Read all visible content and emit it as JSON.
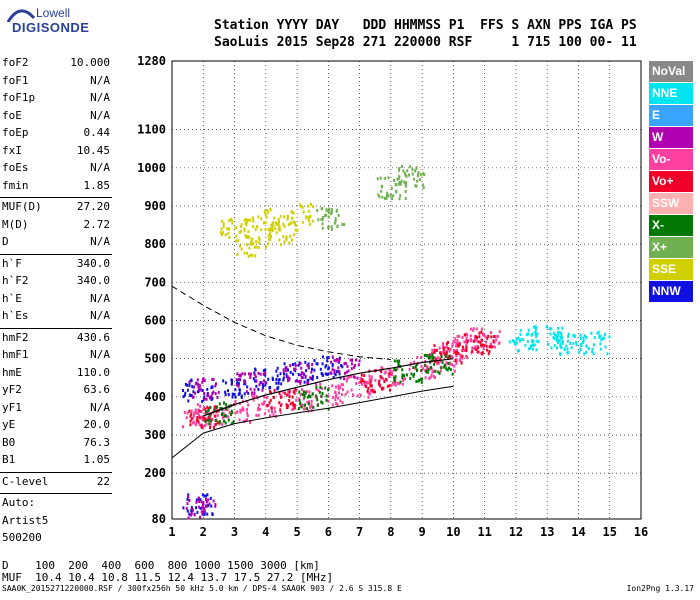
{
  "logo": {
    "top": "Lowell",
    "bottom": "DIGISONDE"
  },
  "header": {
    "line1": "Station YYYY DAY   DDD HHMMSS P1  FFS S AXN PPS IGA PS",
    "line2": "SaoLuis 2015 Sep28 271 220000 RSF     1 715 100 00- 11"
  },
  "params_group1": [
    {
      "name": "foF2",
      "value": "10.000"
    },
    {
      "name": "foF1",
      "value": "N/A"
    },
    {
      "name": "foF1p",
      "value": "N/A"
    },
    {
      "name": "foE",
      "value": "N/A"
    },
    {
      "name": "foEp",
      "value": "0.44"
    },
    {
      "name": "fxI",
      "value": "10.45"
    },
    {
      "name": "foEs",
      "value": "N/A"
    },
    {
      "name": "fmin",
      "value": "1.85"
    }
  ],
  "params_group2": [
    {
      "name": "MUF(D)",
      "value": "27.20"
    },
    {
      "name": "M(D)",
      "value": "2.72"
    },
    {
      "name": "D",
      "value": "N/A"
    }
  ],
  "params_group3": [
    {
      "name": "h`F",
      "value": "340.0"
    },
    {
      "name": "h`F2",
      "value": "340.0"
    },
    {
      "name": "h`E",
      "value": "N/A"
    },
    {
      "name": "h`Es",
      "value": "N/A"
    }
  ],
  "params_group4": [
    {
      "name": "hmF2",
      "value": "430.6"
    },
    {
      "name": "hmF1",
      "value": "N/A"
    },
    {
      "name": "hmE",
      "value": "110.0"
    },
    {
      "name": "yF2",
      "value": "63.6"
    },
    {
      "name": "yF1",
      "value": "N/A"
    },
    {
      "name": "yE",
      "value": "20.0"
    },
    {
      "name": "B0",
      "value": "76.3"
    },
    {
      "name": "B1",
      "value": "1.05"
    }
  ],
  "clevel": {
    "name": "C-level",
    "value": "22"
  },
  "auto": [
    "Auto:",
    "Artist5",
    "500200"
  ],
  "legend": [
    {
      "label": "NoVal",
      "color": "#888888"
    },
    {
      "label": "NNE",
      "color": "#00e5f0"
    },
    {
      "label": "E",
      "color": "#3aa5ff"
    },
    {
      "label": "W",
      "color": "#b000b0"
    },
    {
      "label": "Vo-",
      "color": "#ff40a0"
    },
    {
      "label": "Vo+",
      "color": "#f00028"
    },
    {
      "label": "SSW",
      "color": "#ffb0b0"
    },
    {
      "label": "X-",
      "color": "#007800"
    },
    {
      "label": "X+",
      "color": "#70b050"
    },
    {
      "label": "SSE",
      "color": "#d0d000"
    },
    {
      "label": "NNW",
      "color": "#1010e0"
    }
  ],
  "footer": {
    "line1": "D    100  200  400  600  800 1000 1500 3000 [km]",
    "line2": "MUF  10.4 10.4 10.8 11.5 12.4 13.7 17.5 27.2 [MHz]",
    "filename": "SAA0K_2015271220000.RSF / 300fx256h 50 kHz 5.0 km / DPS-4 SAA0K 903 / 2.6 S 315.8 E",
    "version": "Ion2Png 1.3.17"
  },
  "chart_data": {
    "type": "scatter",
    "x_ticks": [
      1,
      2,
      3,
      4,
      5,
      6,
      7,
      8,
      9,
      10,
      11,
      12,
      13,
      14,
      15,
      16
    ],
    "y_ticks": [
      80,
      200,
      300,
      400,
      500,
      600,
      700,
      800,
      900,
      1000,
      1100,
      1280
    ],
    "xlim": [
      1,
      16
    ],
    "ylim": [
      80,
      1280
    ],
    "grid": true,
    "legend_position": "right",
    "series": [
      {
        "name": "Vo-",
        "color": "#ff40a0",
        "points": [
          [
            1.8,
            350
          ],
          [
            2.2,
            355
          ],
          [
            3,
            365
          ],
          [
            4,
            380
          ],
          [
            5,
            395
          ],
          [
            6,
            410
          ],
          [
            7,
            430
          ],
          [
            8,
            455
          ],
          [
            9,
            480
          ],
          [
            9.6,
            500
          ],
          [
            10,
            520
          ],
          [
            10.5,
            540
          ],
          [
            11,
            555
          ]
        ]
      },
      {
        "name": "Vo+",
        "color": "#f00028",
        "points": [
          [
            2,
            350
          ],
          [
            4.5,
            395
          ],
          [
            7.5,
            445
          ],
          [
            9.8,
            520
          ],
          [
            10.8,
            545
          ]
        ]
      },
      {
        "name": "X-",
        "color": "#007800",
        "points": [
          [
            2.5,
            360
          ],
          [
            5.5,
            400
          ],
          [
            8.5,
            470
          ],
          [
            9.5,
            490
          ]
        ]
      },
      {
        "name": "NNW",
        "color": "#1010e0",
        "points": [
          [
            1.8,
            420
          ],
          [
            3,
            430
          ],
          [
            4,
            450
          ],
          [
            5,
            470
          ],
          [
            6,
            480
          ],
          [
            1.8,
            120
          ]
        ]
      },
      {
        "name": "W",
        "color": "#b000b0",
        "points": [
          [
            2,
            425
          ],
          [
            3.5,
            440
          ],
          [
            5,
            465
          ],
          [
            6.5,
            480
          ],
          [
            1.9,
            115
          ]
        ]
      },
      {
        "name": "SSE",
        "color": "#d0d000",
        "points": [
          [
            3,
            850
          ],
          [
            4,
            870
          ],
          [
            5,
            880
          ],
          [
            3.5,
            800
          ],
          [
            4.5,
            830
          ]
        ]
      },
      {
        "name": "NNE",
        "color": "#00e5f0",
        "points": [
          [
            12.2,
            550
          ],
          [
            13,
            560
          ],
          [
            13.6,
            540
          ],
          [
            14.5,
            545
          ]
        ]
      },
      {
        "name": "X+",
        "color": "#70b050",
        "points": [
          [
            8,
            950
          ],
          [
            8.6,
            980
          ],
          [
            6,
            870
          ]
        ]
      }
    ],
    "curves": {
      "trace_solid": [
        [
          1,
          240
        ],
        [
          2,
          305
        ],
        [
          3,
          330
        ],
        [
          4,
          345
        ],
        [
          5,
          358
        ],
        [
          6,
          370
        ],
        [
          7,
          385
        ],
        [
          8,
          400
        ],
        [
          9,
          415
        ],
        [
          10,
          428
        ]
      ],
      "profile_dashed": [
        [
          1,
          690
        ],
        [
          2,
          640
        ],
        [
          3,
          595
        ],
        [
          4,
          560
        ],
        [
          5,
          535
        ],
        [
          6,
          518
        ],
        [
          7,
          505
        ],
        [
          8,
          498
        ]
      ],
      "profile_solid": [
        [
          2,
          350
        ],
        [
          3,
          380
        ],
        [
          4,
          405
        ],
        [
          5,
          425
        ],
        [
          6,
          445
        ],
        [
          7,
          462
        ],
        [
          8,
          475
        ],
        [
          9,
          490
        ],
        [
          10,
          500
        ]
      ]
    }
  }
}
